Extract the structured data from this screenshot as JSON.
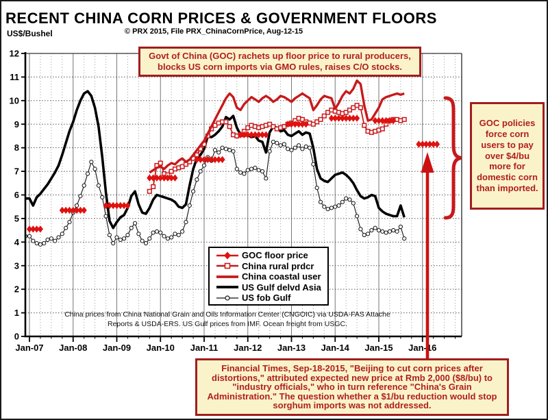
{
  "header": {
    "title": "RECENT CHINA CORN PRICES & GOVERNMENT FLOORS",
    "subtitle": "© PRX 2015, File PRX_ChinaCornPrice, Aug-12-15",
    "unit_label": "US$/Bushel"
  },
  "annotations": {
    "top_box": "Govt of China (GOC) rachets up floor price to rural producers, blocks US corn imports via GMO rules, raises C/O stocks.",
    "right_box": "GOC policies force corn users to pay over $4/bu more for domestic corn than imported.",
    "bottom_box": "Financial Times, Sep-18-2015, \"Beijing to cut corn prices after distortions,\" attributed expected new price at Rmb 2,000 ($8/bu) to \"industry officials,\" who in turn reference \"China's Grain Administration.\" The question whether a $1/bu reduction would stop sorghum imports was not addressed.",
    "footnote": "China prices from China National Grain and Oils Information Center (CNGOIC) via USDA-FAS Attache Reports & USDA-ERS. US Gulf prices from IMF.  Ocean freight from USGC."
  },
  "colors": {
    "series_red": "#c8191b",
    "diamond_red": "#de1210",
    "note_text_red": "#b01e1e",
    "note_border_red": "#a21d1d",
    "note_bg_cream": "#faf3c9",
    "black": "#000000",
    "grid_gray": "#999999"
  },
  "chart_data": {
    "type": "line",
    "title": "RECENT CHINA CORN PRICES & GOVERNMENT FLOORS",
    "ylabel": "US$/Bushel",
    "ylim": [
      0,
      12
    ],
    "y_ticks": [
      0,
      1,
      2,
      3,
      4,
      5,
      6,
      7,
      8,
      9,
      10,
      11,
      12
    ],
    "x_tick_labels": [
      "Jan-07",
      "Jan-08",
      "Jan-09",
      "Jan-10",
      "Jan-11",
      "Jan-12",
      "Jan-13",
      "Jan-14",
      "Jan-15",
      "Jan-16"
    ],
    "grid": true,
    "legend_position": "inside-bottom-center",
    "series": [
      {
        "name": "GOC floor price",
        "key": "goc_floor",
        "style": "diamond-segments",
        "color": "#de1210",
        "segments": [
          {
            "from": "Jan-07",
            "to": "Apr-07",
            "value": 4.55
          },
          {
            "from": "Oct-07",
            "to": "Apr-08",
            "value": 5.35
          },
          {
            "from": "Oct-08",
            "to": "Apr-09",
            "value": 5.55
          },
          {
            "from": "Oct-09",
            "to": "May-10",
            "value": 6.72
          },
          {
            "from": "Nov-10",
            "to": "Jun-11",
            "value": 7.5
          },
          {
            "from": "Nov-11",
            "to": "Jun-12",
            "value": 8.55
          },
          {
            "from": "Dec-12",
            "to": "May-13",
            "value": 9.0
          },
          {
            "from": "Dec-13",
            "to": "Jul-14",
            "value": 9.25
          },
          {
            "from": "Dec-14",
            "to": "May-15",
            "value": 9.15
          },
          {
            "from": "Dec-15",
            "to": "May-16",
            "value": 8.15
          }
        ]
      },
      {
        "name": "China rural prdcr",
        "key": "china_rural_prdcr",
        "style": "line-open-square",
        "color": "#c8191b",
        "start": "Oct-09",
        "values": [
          6.15,
          6.35,
          7.25,
          7.35,
          6.9,
          6.85,
          7.0,
          7.1,
          7.15,
          7.2,
          7.3,
          7.4,
          7.55,
          7.7,
          7.95,
          8.15,
          8.5,
          8.8,
          8.95,
          9.05,
          9.1,
          9.1,
          8.9,
          8.55,
          8.5,
          8.55,
          8.7,
          8.85,
          8.95,
          8.9,
          8.85,
          8.9,
          8.95,
          9.0,
          8.9,
          8.8,
          8.85,
          8.9,
          9.0,
          9.05,
          9.15,
          9.25,
          9.2,
          9.1,
          9.05,
          9.0,
          9.1,
          9.2,
          9.35,
          9.5,
          9.6,
          9.55,
          9.5,
          9.45,
          9.5,
          9.6,
          9.7,
          9.8,
          9.7,
          8.95,
          8.7,
          8.65,
          8.7,
          8.75,
          8.8,
          9.0,
          9.15,
          9.2,
          9.2,
          9.15,
          9.2
        ]
      },
      {
        "name": "China coastal user",
        "key": "china_coastal_user",
        "style": "thick-line",
        "color": "#c8191b",
        "start": "Oct-09",
        "values": [
          6.95,
          7.05,
          7.15,
          7.2,
          7.1,
          7.25,
          7.35,
          7.3,
          7.45,
          7.55,
          7.4,
          7.5,
          7.7,
          7.9,
          8.1,
          8.3,
          8.6,
          8.9,
          9.2,
          9.5,
          9.8,
          10.1,
          10.3,
          10.15,
          9.7,
          9.6,
          9.85,
          10.0,
          10.15,
          10.05,
          9.95,
          10.1,
          10.2,
          10.1,
          9.95,
          10.05,
          10.2,
          10.15,
          10.05,
          9.95,
          10.1,
          10.2,
          10.3,
          10.2,
          10.1,
          9.6,
          9.8,
          10.05,
          10.2,
          10.15,
          10.1,
          9.65,
          9.9,
          10.2,
          10.4,
          10.3,
          10.5,
          10.85,
          10.7,
          9.8,
          9.15,
          9.2,
          9.45,
          9.7,
          10.05,
          10.15,
          10.2,
          10.25,
          10.3,
          10.25,
          10.3
        ]
      },
      {
        "name": "US Gulf delvd Asia",
        "key": "us_gulf_delvd_asia",
        "style": "thick-line",
        "color": "#000000",
        "start": "Jan-07",
        "values": [
          5.85,
          5.55,
          5.9,
          6.05,
          6.25,
          6.45,
          6.7,
          6.95,
          7.25,
          7.7,
          8.2,
          8.7,
          9.1,
          9.6,
          10.0,
          10.3,
          10.4,
          10.2,
          9.7,
          8.9,
          7.6,
          6.1,
          4.9,
          4.6,
          4.85,
          5.05,
          5.15,
          5.45,
          5.95,
          6.15,
          5.6,
          5.25,
          5.2,
          5.45,
          5.8,
          6.0,
          5.95,
          5.9,
          5.85,
          5.8,
          5.7,
          5.5,
          5.45,
          5.6,
          6.4,
          7.1,
          7.55,
          7.7,
          7.95,
          8.5,
          8.45,
          8.55,
          8.7,
          8.9,
          9.3,
          9.2,
          9.35,
          8.85,
          8.55,
          8.5,
          8.55,
          8.45,
          8.5,
          8.3,
          8.25,
          7.8,
          8.65,
          8.9,
          8.85,
          8.7,
          8.75,
          8.55,
          8.5,
          8.6,
          8.7,
          8.55,
          8.65,
          8.6,
          8.0,
          7.1,
          6.7,
          6.6,
          6.55,
          6.7,
          6.85,
          6.9,
          6.95,
          6.85,
          6.7,
          6.5,
          6.2,
          5.95,
          5.85,
          5.9,
          6.0,
          5.95,
          5.45,
          5.3,
          5.2,
          5.15,
          5.1,
          5.1,
          5.55,
          5.05
        ]
      },
      {
        "name": "US fob Gulf",
        "key": "us_fob_gulf",
        "style": "thin-line-open-circle",
        "color": "#111111",
        "start": "Jan-07",
        "values": [
          4.25,
          4.05,
          3.95,
          3.9,
          3.95,
          4.1,
          4.15,
          4.05,
          4.2,
          4.35,
          4.6,
          4.85,
          5.25,
          5.55,
          5.95,
          6.4,
          6.9,
          7.4,
          7.1,
          6.4,
          5.9,
          5.1,
          4.3,
          3.95,
          4.2,
          4.1,
          4.15,
          4.3,
          4.6,
          4.8,
          4.35,
          4.05,
          3.95,
          4.15,
          4.4,
          4.45,
          4.4,
          4.25,
          4.15,
          4.2,
          4.35,
          4.3,
          4.45,
          4.85,
          5.55,
          6.15,
          6.65,
          7.0,
          7.25,
          7.6,
          7.45,
          7.9,
          7.8,
          8.0,
          7.95,
          7.9,
          7.85,
          7.1,
          6.95,
          6.9,
          7.05,
          7.1,
          7.15,
          7.05,
          7.0,
          6.7,
          7.85,
          8.25,
          8.2,
          8.1,
          8.15,
          7.95,
          7.9,
          8.0,
          8.1,
          7.95,
          8.05,
          8.0,
          7.3,
          6.3,
          5.7,
          5.5,
          5.4,
          5.45,
          5.5,
          5.55,
          5.7,
          5.85,
          5.8,
          5.65,
          5.1,
          4.55,
          4.3,
          4.35,
          4.5,
          4.6,
          4.5,
          4.45,
          4.4,
          4.45,
          4.5,
          4.45,
          4.65,
          4.15
        ]
      }
    ]
  }
}
